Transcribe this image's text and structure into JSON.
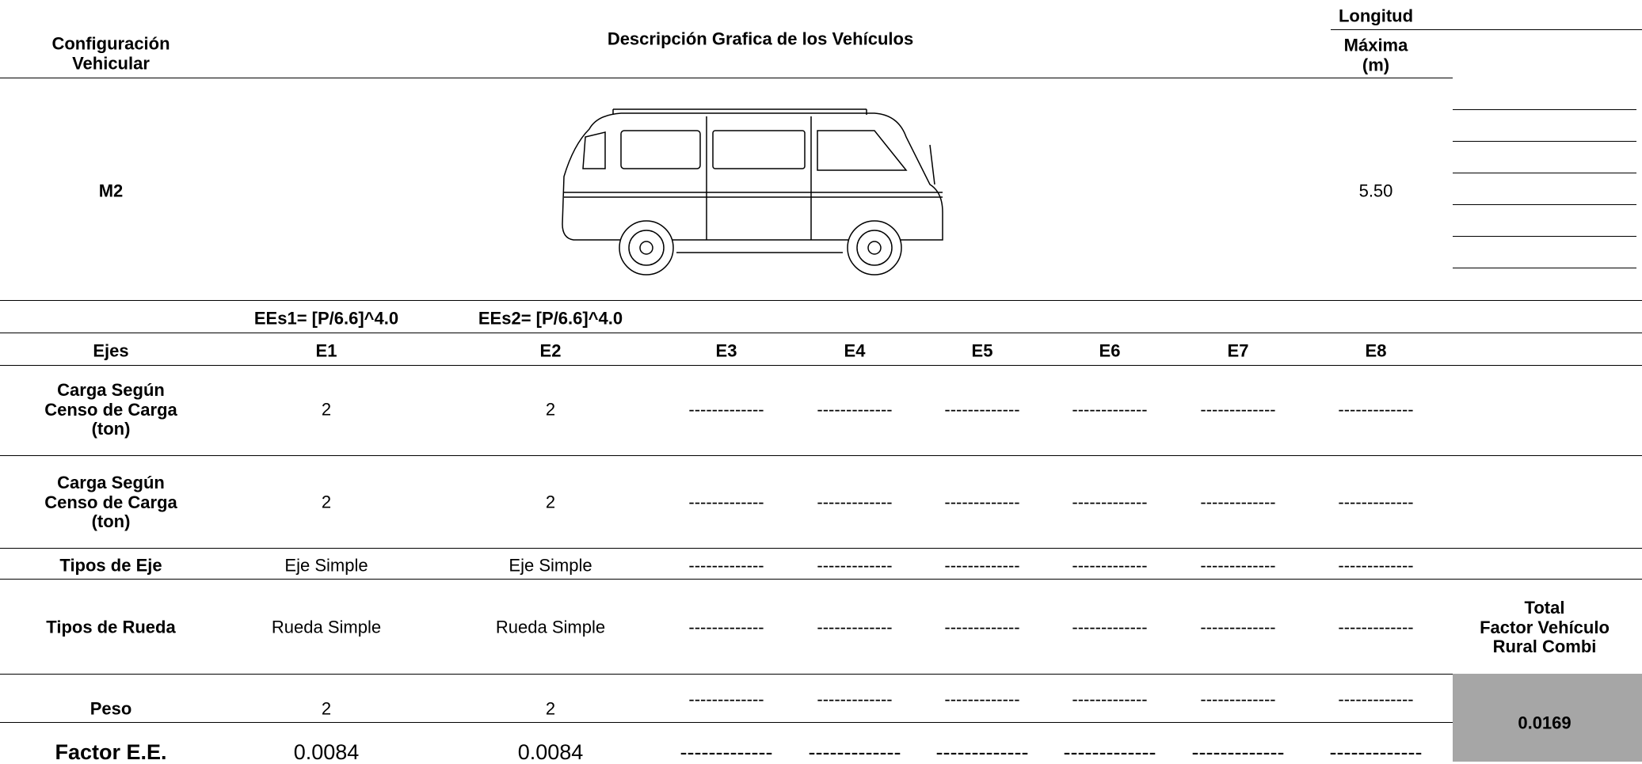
{
  "header": {
    "config_label": "Configuración\nVehicular",
    "description_label": "Descripción Grafica de los Vehículos",
    "length_label_top": "Longitud",
    "length_label_bottom": "Máxima\n(m)"
  },
  "vehicle": {
    "code": "M2",
    "length": "5.50"
  },
  "formulas": [
    "EEs1= [P/6.6]^4.0",
    "EEs2= [P/6.6]^4.0"
  ],
  "table": {
    "columns": [
      "Ejes",
      "E1",
      "E2",
      "E3",
      "E4",
      "E5",
      "E6",
      "E7",
      "E8"
    ],
    "rows": [
      [
        "Carga Según\nCenso de Carga\n(ton)",
        2,
        2,
        "-------------",
        "-------------",
        "-------------",
        "-------------",
        "-------------",
        "-------------"
      ],
      [
        "Carga Según\nCenso de Carga\n(ton)",
        2,
        2,
        "-------------",
        "-------------",
        "-------------",
        "-------------",
        "-------------",
        "-------------"
      ],
      [
        "Tipos de Eje",
        "Eje Simple",
        "Eje Simple",
        "-------------",
        "-------------",
        "-------------",
        "-------------",
        "-------------",
        "-------------"
      ],
      [
        "Tipos de Rueda",
        "Rueda Simple",
        "Rueda Simple",
        "-------------",
        "-------------",
        "-------------",
        "-------------",
        "-------------",
        "-------------"
      ],
      [
        "Peso",
        2,
        2,
        "-------------",
        "-------------",
        "-------------",
        "-------------",
        "-------------",
        "-------------"
      ],
      [
        "Factor E.E.",
        "0.0084",
        "0.0084",
        "-------------",
        "-------------",
        "-------------",
        "-------------",
        "-------------",
        "-------------"
      ]
    ]
  },
  "total": {
    "label": "Total\nFactor Vehículo\nRural Combi",
    "value": "0.0169"
  }
}
